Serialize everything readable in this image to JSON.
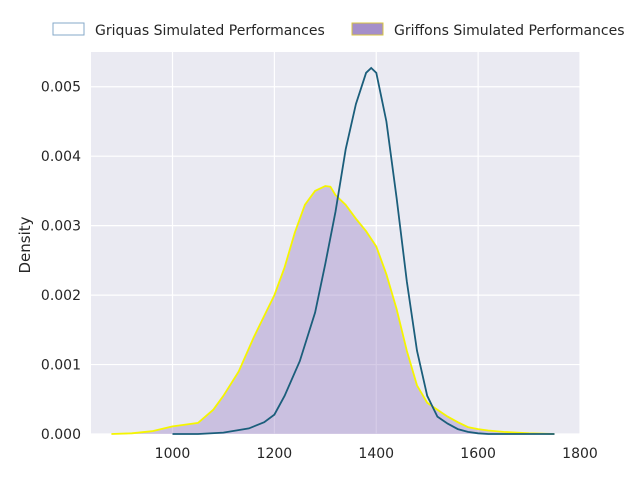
{
  "chart_data": {
    "type": "area",
    "title": "",
    "xlabel": "",
    "ylabel": "Density",
    "xlim": [
      840,
      1800
    ],
    "ylim": [
      0,
      0.0055
    ],
    "xticks": [
      1000,
      1200,
      1400,
      1600,
      1800
    ],
    "xtick_labels": [
      "1000",
      "1200",
      "1400",
      "1600",
      "1800"
    ],
    "yticks": [
      0.0,
      0.001,
      0.002,
      0.003,
      0.004,
      0.005
    ],
    "ytick_labels": [
      "0.000",
      "0.001",
      "0.002",
      "0.003",
      "0.004",
      "0.005"
    ],
    "grid": true,
    "legend_position": "top",
    "colors": {
      "background": "#eaeaf2",
      "grid": "#ffffff",
      "griquas_line": "#1b5e7b",
      "griquas_legend_edge": "#86a9c9",
      "griffons_fill": "#a58fc9",
      "griffons_line": "#f5f500",
      "griffons_legend_edge": "#d9c640"
    },
    "series": [
      {
        "name": "Griquas Simulated Performances",
        "style": "line",
        "x": [
          1000,
          1050,
          1100,
          1150,
          1180,
          1200,
          1220,
          1250,
          1280,
          1300,
          1320,
          1340,
          1360,
          1380,
          1390,
          1400,
          1420,
          1440,
          1460,
          1480,
          1500,
          1520,
          1540,
          1560,
          1580,
          1600,
          1620,
          1650,
          1700,
          1750
        ],
        "y": [
          0.0,
          0.0,
          2e-05,
          8e-05,
          0.00017,
          0.00028,
          0.00055,
          0.00105,
          0.00175,
          0.00245,
          0.0032,
          0.0041,
          0.00475,
          0.0052,
          0.00527,
          0.0052,
          0.0045,
          0.0034,
          0.0022,
          0.0012,
          0.00055,
          0.00025,
          0.00015,
          7e-05,
          3e-05,
          1e-05,
          0.0,
          0.0,
          0.0,
          0.0
        ]
      },
      {
        "name": "Griffons Simulated Performances",
        "style": "filled",
        "x": [
          880,
          920,
          960,
          1000,
          1020,
          1050,
          1080,
          1100,
          1130,
          1160,
          1180,
          1200,
          1220,
          1240,
          1260,
          1280,
          1300,
          1310,
          1320,
          1340,
          1360,
          1380,
          1400,
          1420,
          1440,
          1460,
          1480,
          1500,
          1520,
          1540,
          1560,
          1580,
          1600,
          1620,
          1650,
          1700,
          1750
        ],
        "y": [
          0.0,
          1e-05,
          4e-05,
          0.00011,
          0.00013,
          0.00016,
          0.00035,
          0.00055,
          0.0009,
          0.0014,
          0.0017,
          0.002,
          0.0024,
          0.0029,
          0.0033,
          0.0035,
          0.00357,
          0.00356,
          0.00344,
          0.0033,
          0.0031,
          0.00292,
          0.0027,
          0.0023,
          0.0018,
          0.0012,
          0.0007,
          0.00045,
          0.00035,
          0.00025,
          0.00017,
          0.0001,
          7e-05,
          5e-05,
          3e-05,
          1e-05,
          0.0
        ]
      }
    ]
  }
}
